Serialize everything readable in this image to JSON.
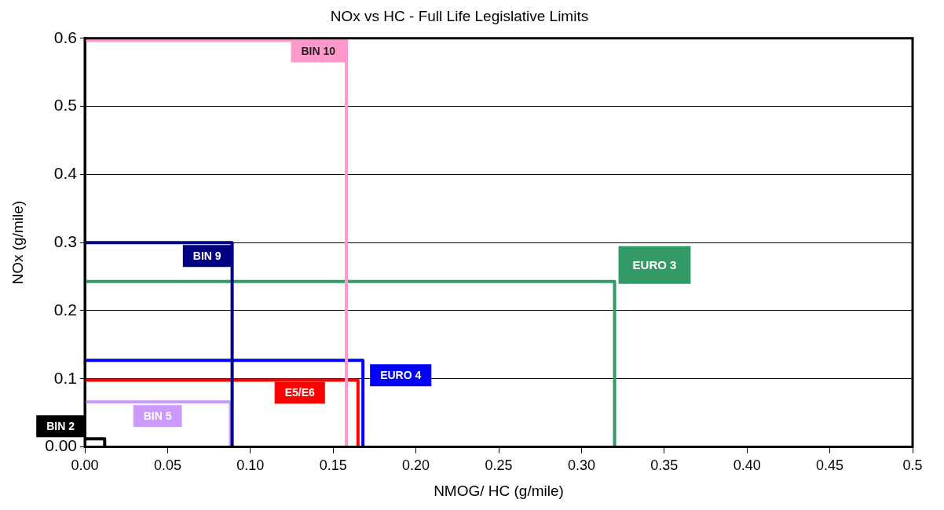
{
  "chart_data": {
    "type": "line",
    "title": "NOx vs HC - Full Life Legislative Limits",
    "xlabel": "NMOG/ HC (g/mile)",
    "ylabel": "NOx (g/mile)",
    "series": [
      {
        "name": "BIN 10",
        "color": "#ff99cc",
        "x": [
          0,
          0.158,
          0.158
        ],
        "values": [
          0.597,
          0.597,
          0
        ]
      },
      {
        "name": "BIN 9",
        "color": "#000080",
        "x": [
          0,
          0.089,
          0.089
        ],
        "values": [
          0.3,
          0.3,
          0
        ]
      },
      {
        "name": "EURO 3",
        "color": "#339966",
        "x": [
          0,
          0.32,
          0.32
        ],
        "values": [
          0.243,
          0.243,
          0
        ]
      },
      {
        "name": "EURO 4",
        "color": "#0000ff",
        "x": [
          0,
          0.168,
          0.168
        ],
        "values": [
          0.127,
          0.127,
          0
        ]
      },
      {
        "name": "E5/E6",
        "color": "#ff0000",
        "x": [
          0,
          0.165,
          0.165
        ],
        "values": [
          0.098,
          0.098,
          0
        ]
      },
      {
        "name": "BIN 5",
        "color": "#cc99ff",
        "x": [
          0,
          0.088,
          0.088
        ],
        "values": [
          0.066,
          0.066,
          0
        ]
      },
      {
        "name": "BIN 2",
        "color": "#000000",
        "x": [
          0,
          0.012,
          0.012
        ],
        "values": [
          0.012,
          0.012,
          0
        ]
      }
    ],
    "xlim": [
      0,
      0.5
    ],
    "xticks": [
      {
        "value": 0,
        "label": "0.00"
      },
      {
        "value": 0.05,
        "label": "0.05"
      },
      {
        "value": 0.1,
        "label": "0.10"
      },
      {
        "value": 0.15,
        "label": "0.15"
      },
      {
        "value": 0.2,
        "label": "0.20"
      },
      {
        "value": 0.25,
        "label": "0.25"
      },
      {
        "value": 0.3,
        "label": "0.30"
      },
      {
        "value": 0.35,
        "label": "0.35"
      },
      {
        "value": 0.4,
        "label": "0.40"
      },
      {
        "value": 0.45,
        "label": "0.45"
      },
      0.5
    ],
    "ylim": [
      0,
      0.6
    ],
    "yticks": [
      {
        "value": 0,
        "label": "0.00"
      },
      0.1,
      0.2,
      0.3,
      0.4,
      0.5,
      0.6
    ],
    "grid": "y",
    "legend": false,
    "marker": "none",
    "line_style": "solid"
  }
}
